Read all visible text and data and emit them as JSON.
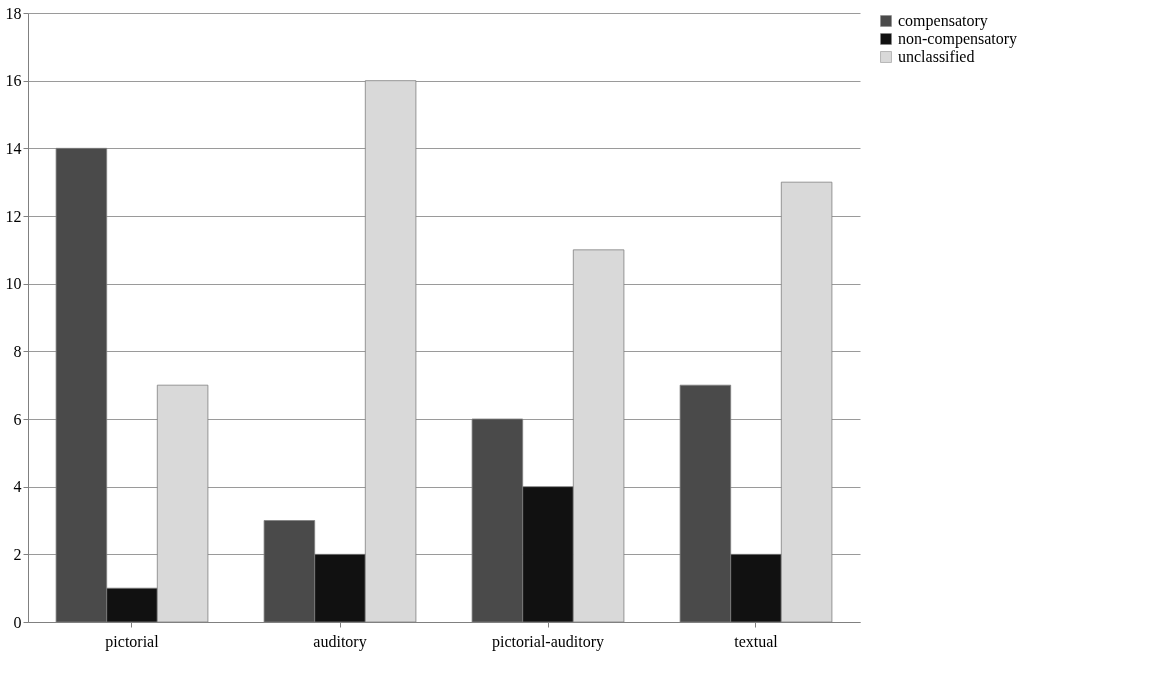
{
  "chart_data": {
    "type": "bar",
    "categories": [
      "pictorial",
      "auditory",
      "pictorial-auditory",
      "textual"
    ],
    "series": [
      {
        "name": "compensatory",
        "color": "#4a4a4a",
        "values": [
          14,
          3,
          6,
          7
        ]
      },
      {
        "name": "non-compensatory",
        "color": "#111111",
        "values": [
          1,
          2,
          4,
          2
        ]
      },
      {
        "name": "unclassified",
        "color": "#d9d9d9",
        "values": [
          7,
          16,
          11,
          13
        ]
      }
    ],
    "ylim": [
      0,
      18
    ],
    "yticks": [
      0,
      2,
      4,
      6,
      8,
      10,
      12,
      14,
      16,
      18
    ],
    "grid": "y",
    "legend": "right"
  }
}
